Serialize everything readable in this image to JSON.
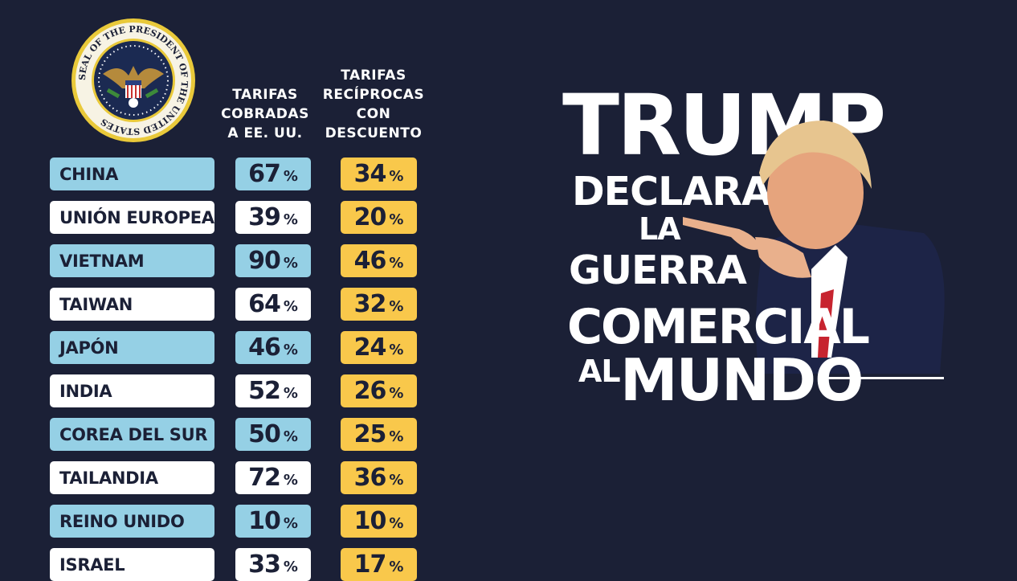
{
  "seal": {
    "text": "SEAL OF THE PRESIDENT OF THE UNITED STATES"
  },
  "headers": {
    "col1": [
      "TARIFAS",
      "COBRADAS",
      "A EE. UU."
    ],
    "col2": [
      "TARIFAS",
      "RECÍPROCAS",
      "CON",
      "DESCUENTO"
    ]
  },
  "percent_sign": "%",
  "rows": [
    {
      "country": "CHINA",
      "charged": "67",
      "reciprocal": "34"
    },
    {
      "country": "UNIÓN EUROPEA",
      "charged": "39",
      "reciprocal": "20"
    },
    {
      "country": "VIETNAM",
      "charged": "90",
      "reciprocal": "46"
    },
    {
      "country": "TAIWAN",
      "charged": "64",
      "reciprocal": "32"
    },
    {
      "country": "JAPÓN",
      "charged": "46",
      "reciprocal": "24"
    },
    {
      "country": "INDIA",
      "charged": "52",
      "reciprocal": "26"
    },
    {
      "country": "COREA DEL SUR",
      "charged": "50",
      "reciprocal": "25"
    },
    {
      "country": "TAILANDIA",
      "charged": "72",
      "reciprocal": "36"
    },
    {
      "country": "REINO UNIDO",
      "charged": "10",
      "reciprocal": "10"
    },
    {
      "country": "ISRAEL",
      "charged": "33",
      "reciprocal": "17"
    }
  ],
  "headline": {
    "line1": "TRUMP",
    "line2": "DECLARA",
    "line3": "LA",
    "line4": "GUERRA",
    "line5": "COMERCIAL",
    "line6a": "AL",
    "line6b": "MUNDO"
  },
  "colors": {
    "background": "#1b2036",
    "row_blue": "#95d0e5",
    "row_white": "#ffffff",
    "reciprocal_yellow": "#f9c84b"
  }
}
